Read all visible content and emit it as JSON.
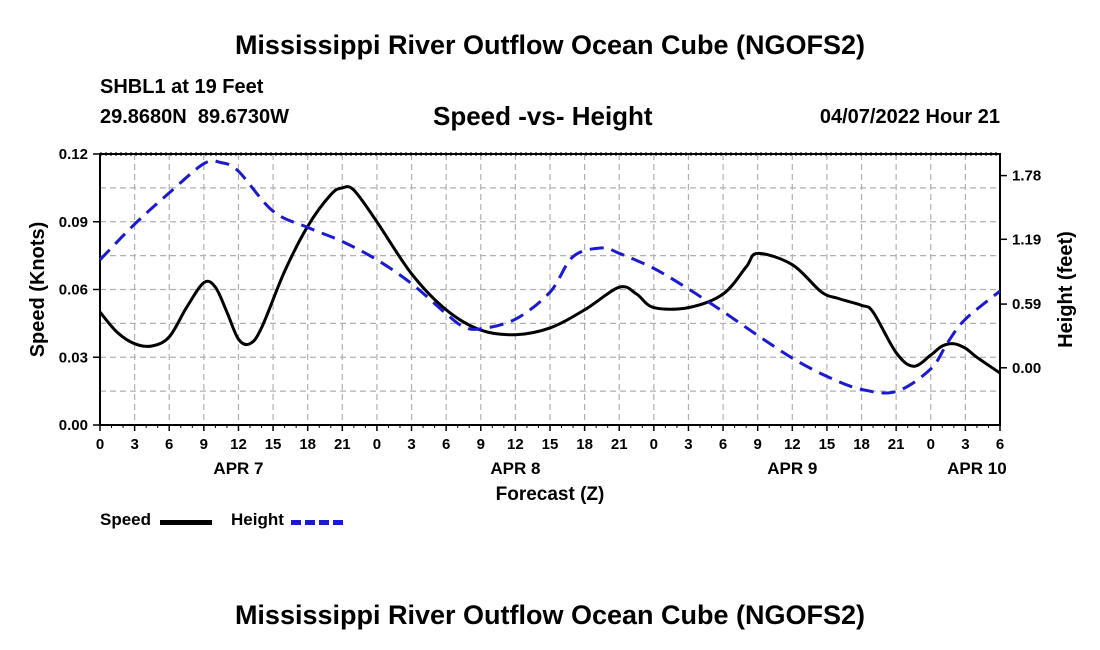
{
  "title": "Mississippi River Outflow Ocean Cube (NGOFS2)",
  "station": "SHBL1 at 19 Feet",
  "coordinates": "29.8680N  89.6730W",
  "subtitle": "Speed -vs- Height",
  "datetime": "04/07/2022 Hour 21",
  "bottom_title": "Mississippi River Outflow Ocean Cube (NGOFS2)",
  "legend": {
    "speed_label": "Speed",
    "height_label": "Height"
  },
  "colors": {
    "speed": "#000000",
    "height": "#1a1ad2",
    "grid": "#b0b0b0"
  },
  "chart_data": {
    "type": "line",
    "title": "Speed -vs- Height",
    "xlabel": "Forecast (Z)",
    "ylabel": "Speed (Knots)",
    "y2label": "Height (feet)",
    "x_hours_start": 0,
    "x_hours_end": 78,
    "x_tick_step": 3,
    "x_tick_labels": [
      "0",
      "3",
      "6",
      "9",
      "12",
      "15",
      "18",
      "21",
      "0",
      "3",
      "6",
      "9",
      "12",
      "15",
      "18",
      "21",
      "0",
      "3",
      "6",
      "9",
      "12",
      "15",
      "18",
      "21",
      "0",
      "3",
      "6"
    ],
    "day_labels": [
      {
        "hour": 12,
        "label": "APR 7"
      },
      {
        "hour": 36,
        "label": "APR 8"
      },
      {
        "hour": 60,
        "label": "APR 9"
      },
      {
        "hour": 76,
        "label": "APR 10"
      }
    ],
    "ylim": [
      0,
      0.12
    ],
    "y_ticks": [
      0.0,
      0.03,
      0.06,
      0.09,
      0.12
    ],
    "y_tick_labels": [
      "0.00",
      "0.03",
      "0.06",
      "0.09",
      "0.12"
    ],
    "y2lim": [
      -0.53,
      1.98
    ],
    "y2_ticks": [
      0.0,
      0.59,
      1.19,
      1.78
    ],
    "y2_tick_labels": [
      "0.00",
      "0.59",
      "1.19",
      "1.78"
    ],
    "grid": true,
    "series": [
      {
        "name": "Speed",
        "axis": "left",
        "style": "solid",
        "x": [
          0,
          1.5,
          3,
          4.5,
          6,
          7.5,
          9,
          10,
          11,
          12,
          13,
          14,
          16,
          18,
          20,
          21,
          22,
          24,
          27,
          30,
          33,
          36,
          39,
          42,
          45,
          46.5,
          48,
          51,
          54,
          56,
          57,
          60,
          62.5,
          64,
          66,
          67,
          69,
          70.5,
          72,
          73,
          74,
          75,
          76,
          78
        ],
        "values": [
          0.05,
          0.041,
          0.036,
          0.035,
          0.039,
          0.052,
          0.063,
          0.061,
          0.05,
          0.038,
          0.036,
          0.043,
          0.068,
          0.088,
          0.102,
          0.105,
          0.104,
          0.09,
          0.067,
          0.051,
          0.042,
          0.04,
          0.043,
          0.051,
          0.061,
          0.058,
          0.052,
          0.052,
          0.058,
          0.07,
          0.076,
          0.071,
          0.059,
          0.056,
          0.053,
          0.05,
          0.032,
          0.026,
          0.031,
          0.035,
          0.036,
          0.034,
          0.03,
          0.023
        ]
      },
      {
        "name": "Height",
        "axis": "right",
        "style": "dashed",
        "x": [
          0,
          3,
          6,
          9,
          10.5,
          12,
          15,
          18,
          21,
          24,
          27,
          30,
          31.5,
          33,
          36,
          39,
          41,
          43.5,
          45,
          48,
          51,
          54,
          57,
          60,
          63,
          66,
          69,
          72,
          73.5,
          75,
          78
        ],
        "values": [
          1.0,
          1.33,
          1.62,
          1.89,
          1.9,
          1.82,
          1.45,
          1.3,
          1.17,
          1.0,
          0.78,
          0.5,
          0.38,
          0.36,
          0.45,
          0.7,
          1.03,
          1.11,
          1.06,
          0.92,
          0.73,
          0.52,
          0.3,
          0.09,
          -0.08,
          -0.2,
          -0.22,
          -0.01,
          0.24,
          0.45,
          0.71
        ]
      }
    ]
  }
}
